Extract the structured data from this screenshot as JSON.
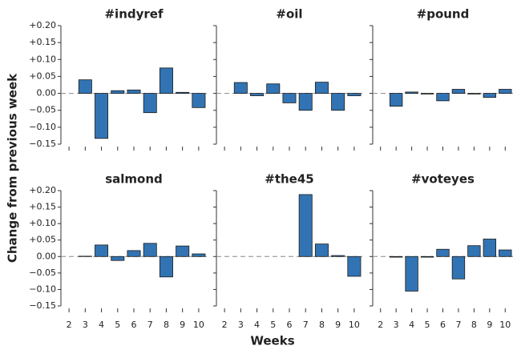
{
  "figure": {
    "xlabel": "Weeks",
    "ylabel": "Change from previous week"
  },
  "chart_data": [
    {
      "type": "bar",
      "title": "#indyref",
      "x": [
        2,
        3,
        4,
        5,
        6,
        7,
        8,
        9,
        10
      ],
      "values": [
        null,
        0.04,
        -0.133,
        0.008,
        0.01,
        -0.057,
        0.075,
        0.003,
        -0.042
      ],
      "color": "#3274b3",
      "xlim": [
        1.5,
        10.5
      ],
      "xticks": [
        2,
        3,
        4,
        5,
        6,
        7,
        8,
        9,
        10
      ],
      "ylim": [
        -0.15,
        0.2
      ],
      "yticks": [
        {
          "value": 0.2,
          "label": "+0.20"
        },
        {
          "value": 0.15,
          "label": "+0.15"
        },
        {
          "value": 0.1,
          "label": "+0.10"
        },
        {
          "value": 0.05,
          "label": "+0.05"
        },
        {
          "value": 0,
          "label": "0.00"
        },
        {
          "value": -0.05,
          "label": "−0.05"
        },
        {
          "value": -0.1,
          "label": "−0.10"
        },
        {
          "value": -0.15,
          "label": "−0.15"
        }
      ]
    },
    {
      "type": "bar",
      "title": "#oil",
      "x": [
        2,
        3,
        4,
        5,
        6,
        7,
        8,
        9,
        10
      ],
      "values": [
        null,
        0.032,
        -0.007,
        0.028,
        -0.028,
        -0.05,
        0.033,
        -0.05,
        -0.007
      ],
      "color": "#3274b3",
      "xlim": [
        1.5,
        10.5
      ],
      "xticks": [
        2,
        3,
        4,
        5,
        6,
        7,
        8,
        9,
        10
      ],
      "ylim": [
        -0.15,
        0.2
      ],
      "yticks": [
        0.2,
        0.15,
        0.1,
        0.05,
        0,
        -0.05,
        -0.1,
        -0.15
      ]
    },
    {
      "type": "bar",
      "title": "#pound",
      "x": [
        2,
        3,
        4,
        5,
        6,
        7,
        8,
        9,
        10
      ],
      "values": [
        null,
        -0.038,
        0.004,
        -0.002,
        -0.022,
        0.012,
        -0.002,
        -0.012,
        0.012
      ],
      "color": "#3274b3",
      "xlim": [
        1.5,
        10.5
      ],
      "xticks": [
        2,
        3,
        4,
        5,
        6,
        7,
        8,
        9,
        10
      ],
      "ylim": [
        -0.15,
        0.2
      ],
      "yticks": [
        0.2,
        0.15,
        0.1,
        0.05,
        0,
        -0.05,
        -0.1,
        -0.15
      ]
    },
    {
      "type": "bar",
      "title": "salmond",
      "x": [
        2,
        3,
        4,
        5,
        6,
        7,
        8,
        9,
        10
      ],
      "values": [
        null,
        0.001,
        0.035,
        -0.012,
        0.018,
        0.04,
        -0.062,
        0.032,
        0.008
      ],
      "color": "#3274b3",
      "xlim": [
        1.5,
        10.5
      ],
      "xticks": [
        2,
        3,
        4,
        5,
        6,
        7,
        8,
        9,
        10
      ],
      "ylim": [
        -0.15,
        0.2
      ],
      "yticks": [
        {
          "value": 0.2,
          "label": "+0.20"
        },
        {
          "value": 0.15,
          "label": "+0.15"
        },
        {
          "value": 0.1,
          "label": "+0.10"
        },
        {
          "value": 0.05,
          "label": "+0.05"
        },
        {
          "value": 0,
          "label": "0.00"
        },
        {
          "value": -0.05,
          "label": "−0.05"
        },
        {
          "value": -0.1,
          "label": "−0.10"
        },
        {
          "value": -0.15,
          "label": "−0.15"
        }
      ]
    },
    {
      "type": "bar",
      "title": "#the45",
      "x": [
        2,
        3,
        4,
        5,
        6,
        7,
        8,
        9,
        10
      ],
      "values": [
        null,
        0,
        0,
        0,
        0,
        0.188,
        0.038,
        0.003,
        -0.06
      ],
      "color": "#3274b3",
      "xlim": [
        1.5,
        10.5
      ],
      "xticks": [
        2,
        3,
        4,
        5,
        6,
        7,
        8,
        9,
        10
      ],
      "ylim": [
        -0.15,
        0.2
      ],
      "yticks": [
        0.2,
        0.15,
        0.1,
        0.05,
        0,
        -0.05,
        -0.1,
        -0.15
      ]
    },
    {
      "type": "bar",
      "title": "#voteyes",
      "x": [
        2,
        3,
        4,
        5,
        6,
        7,
        8,
        9,
        10
      ],
      "values": [
        null,
        -0.002,
        -0.105,
        -0.002,
        0.022,
        -0.068,
        0.033,
        0.053,
        0.02
      ],
      "color": "#3274b3",
      "xlim": [
        1.5,
        10.5
      ],
      "xticks": [
        2,
        3,
        4,
        5,
        6,
        7,
        8,
        9,
        10
      ],
      "ylim": [
        -0.15,
        0.2
      ],
      "yticks": [
        0.2,
        0.15,
        0.1,
        0.05,
        0,
        -0.05,
        -0.1,
        -0.15
      ]
    }
  ]
}
